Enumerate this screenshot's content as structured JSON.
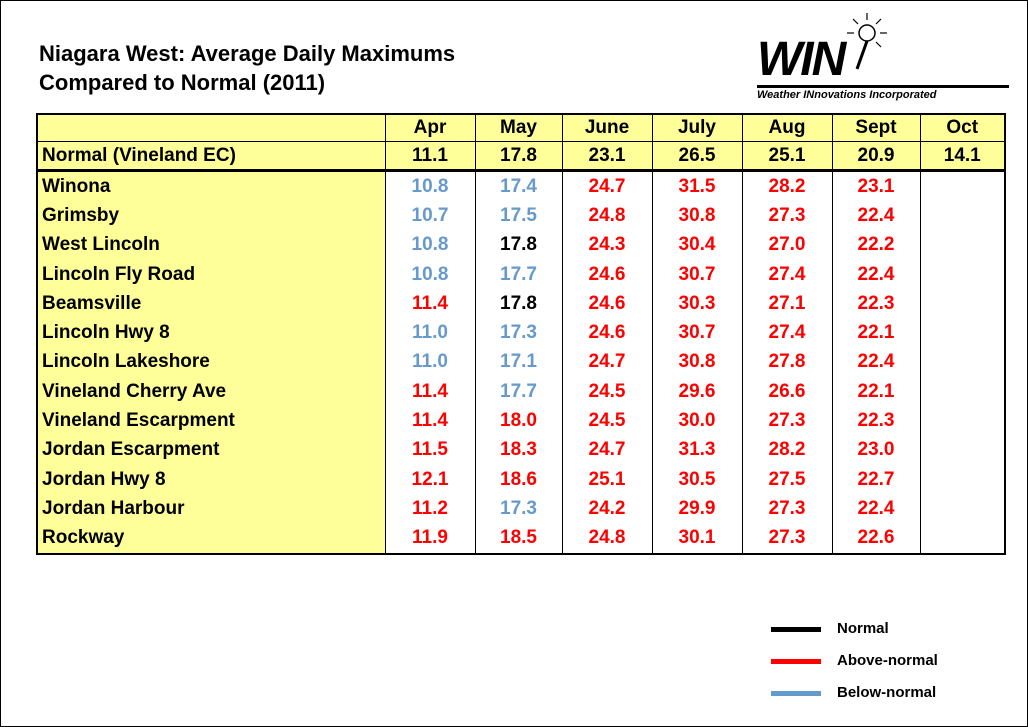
{
  "header": {
    "title": [
      "Niagara West: Average Daily Maximums",
      "Compared to Normal (2011)"
    ],
    "logo": {
      "name": "WIN",
      "tagline": "Weather INnovations Incorporated"
    }
  },
  "table": {
    "columns": [
      "Apr",
      "May",
      "June",
      "July",
      "Aug",
      "Sept",
      "Oct"
    ],
    "normal": {
      "label": "Normal (Vineland EC)",
      "values": [
        "11.1",
        "17.8",
        "23.1",
        "26.5",
        "25.1",
        "20.9",
        "14.1"
      ]
    },
    "rows": [
      {
        "label": "Winona",
        "values": [
          "10.8",
          "17.4",
          "24.7",
          "31.5",
          "28.2",
          "23.1"
        ],
        "colors": [
          "#6699cc",
          "#6699cc",
          "#ff0000",
          "#ff0000",
          "#ff0000",
          "#ff0000"
        ]
      },
      {
        "label": "Grimsby",
        "values": [
          "10.7",
          "17.5",
          "24.8",
          "30.8",
          "27.3",
          "22.4"
        ],
        "colors": [
          "#6699cc",
          "#6699cc",
          "#ff0000",
          "#ff0000",
          "#ff0000",
          "#ff0000"
        ]
      },
      {
        "label": "West Lincoln",
        "values": [
          "10.8",
          "17.8",
          "24.3",
          "30.4",
          "27.0",
          "22.2"
        ],
        "colors": [
          "#6699cc",
          "#000000",
          "#ff0000",
          "#ff0000",
          "#ff0000",
          "#ff0000"
        ]
      },
      {
        "label": "Lincoln Fly Road",
        "values": [
          "10.8",
          "17.7",
          "24.6",
          "30.7",
          "27.4",
          "22.4"
        ],
        "colors": [
          "#6699cc",
          "#6699cc",
          "#ff0000",
          "#ff0000",
          "#ff0000",
          "#ff0000"
        ]
      },
      {
        "label": "Beamsville",
        "values": [
          "11.4",
          "17.8",
          "24.6",
          "30.3",
          "27.1",
          "22.3"
        ],
        "colors": [
          "#ff0000",
          "#000000",
          "#ff0000",
          "#ff0000",
          "#ff0000",
          "#ff0000"
        ]
      },
      {
        "label": "Lincoln Hwy 8",
        "values": [
          "11.0",
          "17.3",
          "24.6",
          "30.7",
          "27.4",
          "22.1"
        ],
        "colors": [
          "#6699cc",
          "#6699cc",
          "#ff0000",
          "#ff0000",
          "#ff0000",
          "#ff0000"
        ]
      },
      {
        "label": "Lincoln Lakeshore",
        "values": [
          "11.0",
          "17.1",
          "24.7",
          "30.8",
          "27.8",
          "22.4"
        ],
        "colors": [
          "#6699cc",
          "#6699cc",
          "#ff0000",
          "#ff0000",
          "#ff0000",
          "#ff0000"
        ]
      },
      {
        "label": "Vineland Cherry Ave",
        "values": [
          "11.4",
          "17.7",
          "24.5",
          "29.6",
          "26.6",
          "22.1"
        ],
        "colors": [
          "#ff0000",
          "#6699cc",
          "#ff0000",
          "#ff0000",
          "#ff0000",
          "#ff0000"
        ]
      },
      {
        "label": "Vineland Escarpment",
        "values": [
          "11.4",
          "18.0",
          "24.5",
          "30.0",
          "27.3",
          "22.3"
        ],
        "colors": [
          "#ff0000",
          "#ff0000",
          "#ff0000",
          "#ff0000",
          "#ff0000",
          "#ff0000"
        ]
      },
      {
        "label": "Jordan Escarpment",
        "values": [
          "11.5",
          "18.3",
          "24.7",
          "31.3",
          "28.2",
          "23.0"
        ],
        "colors": [
          "#ff0000",
          "#ff0000",
          "#ff0000",
          "#ff0000",
          "#ff0000",
          "#ff0000"
        ]
      },
      {
        "label": "Jordan Hwy 8",
        "values": [
          "12.1",
          "18.6",
          "25.1",
          "30.5",
          "27.5",
          "22.7"
        ],
        "colors": [
          "#ff0000",
          "#ff0000",
          "#ff0000",
          "#ff0000",
          "#ff0000",
          "#ff0000"
        ]
      },
      {
        "label": "Jordan Harbour",
        "values": [
          "11.2",
          "17.3",
          "24.2",
          "29.9",
          "27.3",
          "22.4"
        ],
        "colors": [
          "#ff0000",
          "#6699cc",
          "#ff0000",
          "#ff0000",
          "#ff0000",
          "#ff0000"
        ]
      },
      {
        "label": "Rockway",
        "values": [
          "11.9",
          "18.5",
          "24.8",
          "30.1",
          "27.3",
          "22.6"
        ],
        "colors": [
          "#ff0000",
          "#ff0000",
          "#ff0000",
          "#ff0000",
          "#ff0000",
          "#ff0000"
        ]
      }
    ]
  },
  "legend": [
    {
      "label": "Normal",
      "color": "#000000"
    },
    {
      "label": "Above-normal",
      "color": "#ff0000"
    },
    {
      "label": "Below-normal",
      "color": "#6699cc"
    }
  ]
}
